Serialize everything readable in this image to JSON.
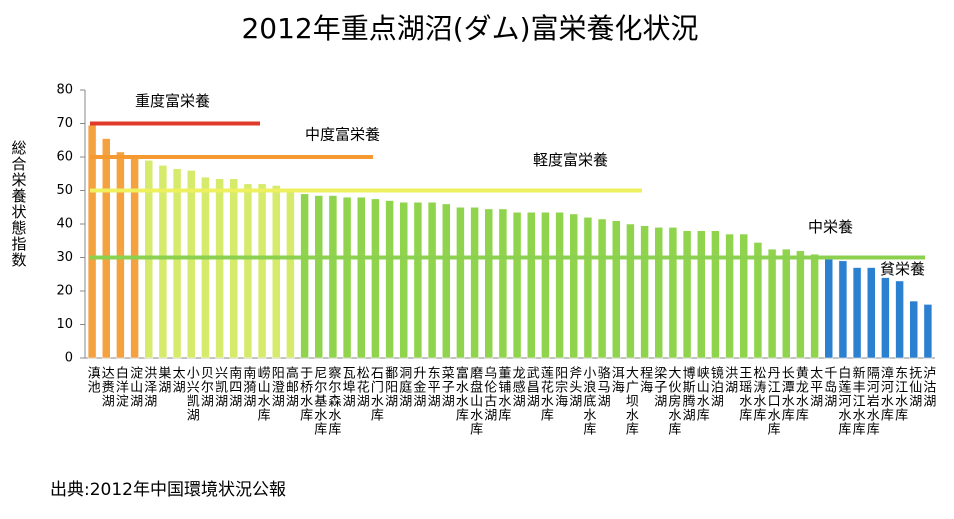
{
  "chart_data": {
    "type": "bar",
    "title": "2012年重点湖沼(ダム)富栄養化状況",
    "y_label": "総合栄養状態指数",
    "source": "出典:2012年中国環境状況公報",
    "categories": [
      "滇池",
      "达赉湖",
      "白洋淀",
      "淀山湖",
      "洪泽湖",
      "巣湖",
      "太湖",
      "小兴凯湖",
      "贝尔湖",
      "兴凯湖",
      "南四湖",
      "南漪湖",
      "崂山水库",
      "阳澄湖",
      "高邮湖",
      "于桥水库",
      "尼尔基水库",
      "察尔森水库",
      "瓦埠湖",
      "松花湖",
      "石门水库",
      "鄱阳湖",
      "洞庭湖",
      "升金湖",
      "东平湖",
      "菜子湖",
      "富水水库",
      "磨盘山水库",
      "乌伦古湖",
      "董铺水库",
      "龙感湖",
      "武昌湖",
      "莲花水库",
      "阳宗海",
      "斧头湖",
      "小浪底水库",
      "骆马湖",
      "洱海",
      "大广坝水库",
      "程海",
      "梁子湖",
      "大伙房水库",
      "博斯腾湖",
      "峡山水库",
      "镜泊湖",
      "洪湖",
      "王瑶水库",
      "松涛水库",
      "丹江口水库",
      "长潭水库",
      "黄龙水库",
      "太平湖",
      "千岛湖",
      "白莲河水库",
      "新丰江水库",
      "隔河岩水库",
      "漳河水库",
      "东江水库",
      "抚仙湖",
      "泸沽湖"
    ],
    "values": [
      69.5,
      65.5,
      61.5,
      60,
      59,
      57.5,
      56.5,
      56,
      54,
      53.5,
      53.5,
      52,
      52,
      51.5,
      50,
      49,
      48.5,
      48.5,
      48,
      48,
      47.5,
      47,
      46.5,
      46.5,
      46.5,
      46,
      45,
      45,
      44.5,
      44.5,
      43.5,
      43.5,
      43.5,
      43.5,
      43,
      42,
      41.5,
      41,
      40,
      39.5,
      39,
      39,
      38,
      38,
      38,
      37,
      37,
      34.5,
      32.5,
      32.5,
      32,
      31,
      29.5,
      29,
      27,
      27,
      24,
      23,
      17,
      16
    ],
    "colors": [
      "#f4a13f",
      "#f4a13f",
      "#f4a13f",
      "#f4a13f",
      "#d6ea6c",
      "#d6ea6c",
      "#d6ea6c",
      "#d6ea6c",
      "#d6ea6c",
      "#d6ea6c",
      "#d6ea6c",
      "#d6ea6c",
      "#d6ea6c",
      "#d6ea6c",
      "#d6ea6c",
      "#8fd44c",
      "#8fd44c",
      "#8fd44c",
      "#8fd44c",
      "#8fd44c",
      "#8fd44c",
      "#8fd44c",
      "#8fd44c",
      "#8fd44c",
      "#8fd44c",
      "#8fd44c",
      "#8fd44c",
      "#8fd44c",
      "#8fd44c",
      "#8fd44c",
      "#8fd44c",
      "#8fd44c",
      "#8fd44c",
      "#8fd44c",
      "#8fd44c",
      "#8fd44c",
      "#8fd44c",
      "#8fd44c",
      "#8fd44c",
      "#8fd44c",
      "#8fd44c",
      "#8fd44c",
      "#8fd44c",
      "#8fd44c",
      "#8fd44c",
      "#8fd44c",
      "#8fd44c",
      "#8fd44c",
      "#8fd44c",
      "#8fd44c",
      "#8fd44c",
      "#8fd44c",
      "#2c80d0",
      "#2c80d0",
      "#2c80d0",
      "#2c80d0",
      "#2c80d0",
      "#2c80d0",
      "#2c80d0",
      "#2c80d0"
    ],
    "reference_lines": [
      {
        "value": 70,
        "label": "重度富栄養",
        "color": "#e03a2a"
      },
      {
        "value": 60,
        "label": "中度富栄養",
        "color": "#f59a30"
      },
      {
        "value": 50,
        "label": "軽度富栄養",
        "color": "#eef060"
      },
      {
        "value": 30,
        "label": "中栄養",
        "color": "#8cd050"
      },
      {
        "value": 30,
        "label": "貧栄養",
        "color": "#8cd050"
      }
    ],
    "ylim": [
      0,
      80
    ],
    "yticks": [
      0,
      10,
      20,
      30,
      40,
      50,
      60,
      70,
      80
    ]
  }
}
